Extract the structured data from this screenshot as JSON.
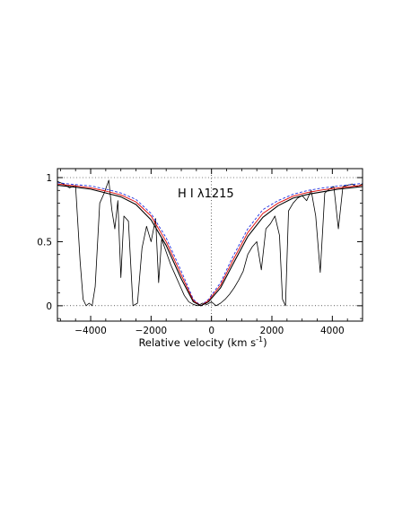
{
  "chart_data": {
    "type": "line",
    "xlabel": "Relative velocity (km s",
    "xlabel_sup": "-1",
    "xlabel_end": ")",
    "ylabel": "",
    "xlim": [
      -5100,
      5000
    ],
    "ylim": [
      -0.12,
      1.07
    ],
    "x_ticks": [
      -4000,
      -2000,
      0,
      2000,
      4000
    ],
    "x_tick_labels": [
      "−4000",
      "−2000",
      "0",
      "2000",
      "4000"
    ],
    "y_ticks": [
      0,
      0.5,
      1
    ],
    "y_tick_labels": [
      "0",
      "0.5",
      "1"
    ],
    "grid": "dotted reference lines at y=0, y=1 and x=0",
    "legend": "none",
    "annotation": "H I λ1215",
    "profile_center": -350,
    "colors": {
      "data": "#000000",
      "fit_black": "#000000",
      "fit_red": "#e00000",
      "fit_blue": "#2030e0"
    },
    "series": [
      {
        "id": "spectrum",
        "color": "#000000",
        "x": [
          -5100,
          -4900,
          -4700,
          -4500,
          -4350,
          -4250,
          -4150,
          -4050,
          -3950,
          -3850,
          -3700,
          -3550,
          -3400,
          -3300,
          -3200,
          -3100,
          -3000,
          -2900,
          -2750,
          -2600,
          -2450,
          -2300,
          -2150,
          -2000,
          -1850,
          -1750,
          -1650,
          -1500,
          -1350,
          -1200,
          -1050,
          -900,
          -750,
          -600,
          -450,
          -300,
          -150,
          0,
          150,
          300,
          450,
          600,
          750,
          900,
          1050,
          1200,
          1350,
          1500,
          1650,
          1800,
          1950,
          2100,
          2250,
          2350,
          2450,
          2550,
          2700,
          2850,
          3000,
          3150,
          3300,
          3450,
          3600,
          3750,
          3900,
          4050,
          4200,
          4350,
          4500,
          4650,
          4800,
          5000
        ],
        "y": [
          0.97,
          0.95,
          0.92,
          0.94,
          0.35,
          0.05,
          0.0,
          0.02,
          0.0,
          0.15,
          0.8,
          0.88,
          0.98,
          0.75,
          0.6,
          0.82,
          0.22,
          0.7,
          0.66,
          0.0,
          0.02,
          0.45,
          0.62,
          0.5,
          0.68,
          0.18,
          0.52,
          0.42,
          0.32,
          0.24,
          0.16,
          0.08,
          0.03,
          0.01,
          0.0,
          0.02,
          0.01,
          0.03,
          0.0,
          0.02,
          0.05,
          0.09,
          0.14,
          0.2,
          0.27,
          0.4,
          0.46,
          0.5,
          0.28,
          0.6,
          0.64,
          0.7,
          0.55,
          0.05,
          0.0,
          0.74,
          0.8,
          0.84,
          0.86,
          0.82,
          0.9,
          0.7,
          0.26,
          0.88,
          0.91,
          0.93,
          0.6,
          0.93,
          0.94,
          0.95,
          0.93,
          0.95
        ]
      },
      {
        "id": "fit-black",
        "color": "#000000",
        "x": [
          -5100,
          -4500,
          -4000,
          -3500,
          -3000,
          -2500,
          -2000,
          -1500,
          -1000,
          -600,
          -350,
          -100,
          300,
          700,
          1200,
          1700,
          2200,
          2700,
          3200,
          3700,
          4200,
          4600,
          5000
        ],
        "y": [
          0.94,
          0.925,
          0.91,
          0.88,
          0.85,
          0.79,
          0.67,
          0.47,
          0.21,
          0.03,
          0.0,
          0.03,
          0.14,
          0.32,
          0.54,
          0.69,
          0.78,
          0.84,
          0.87,
          0.89,
          0.91,
          0.92,
          0.93
        ]
      },
      {
        "id": "fit-red",
        "color": "#e00000",
        "x": [
          -5100,
          -4500,
          -4000,
          -3500,
          -3000,
          -2500,
          -2000,
          -1500,
          -1000,
          -600,
          -350,
          -100,
          300,
          700,
          1200,
          1700,
          2200,
          2700,
          3200,
          3700,
          4200,
          4600,
          5000
        ],
        "y": [
          0.95,
          0.935,
          0.92,
          0.895,
          0.865,
          0.81,
          0.7,
          0.5,
          0.24,
          0.04,
          0.0,
          0.04,
          0.16,
          0.35,
          0.57,
          0.72,
          0.8,
          0.855,
          0.885,
          0.905,
          0.92,
          0.93,
          0.94
        ]
      },
      {
        "id": "fit-blue",
        "color": "#2030e0",
        "x": [
          -5100,
          -4500,
          -4000,
          -3500,
          -3000,
          -2500,
          -2000,
          -1500,
          -1000,
          -600,
          -350,
          -100,
          300,
          700,
          1200,
          1700,
          2200,
          2700,
          3200,
          3700,
          4200,
          4600,
          5000
        ],
        "y": [
          0.96,
          0.945,
          0.935,
          0.91,
          0.88,
          0.83,
          0.72,
          0.53,
          0.27,
          0.05,
          0.0,
          0.05,
          0.18,
          0.38,
          0.6,
          0.75,
          0.82,
          0.87,
          0.9,
          0.92,
          0.935,
          0.945,
          0.955
        ]
      }
    ]
  }
}
